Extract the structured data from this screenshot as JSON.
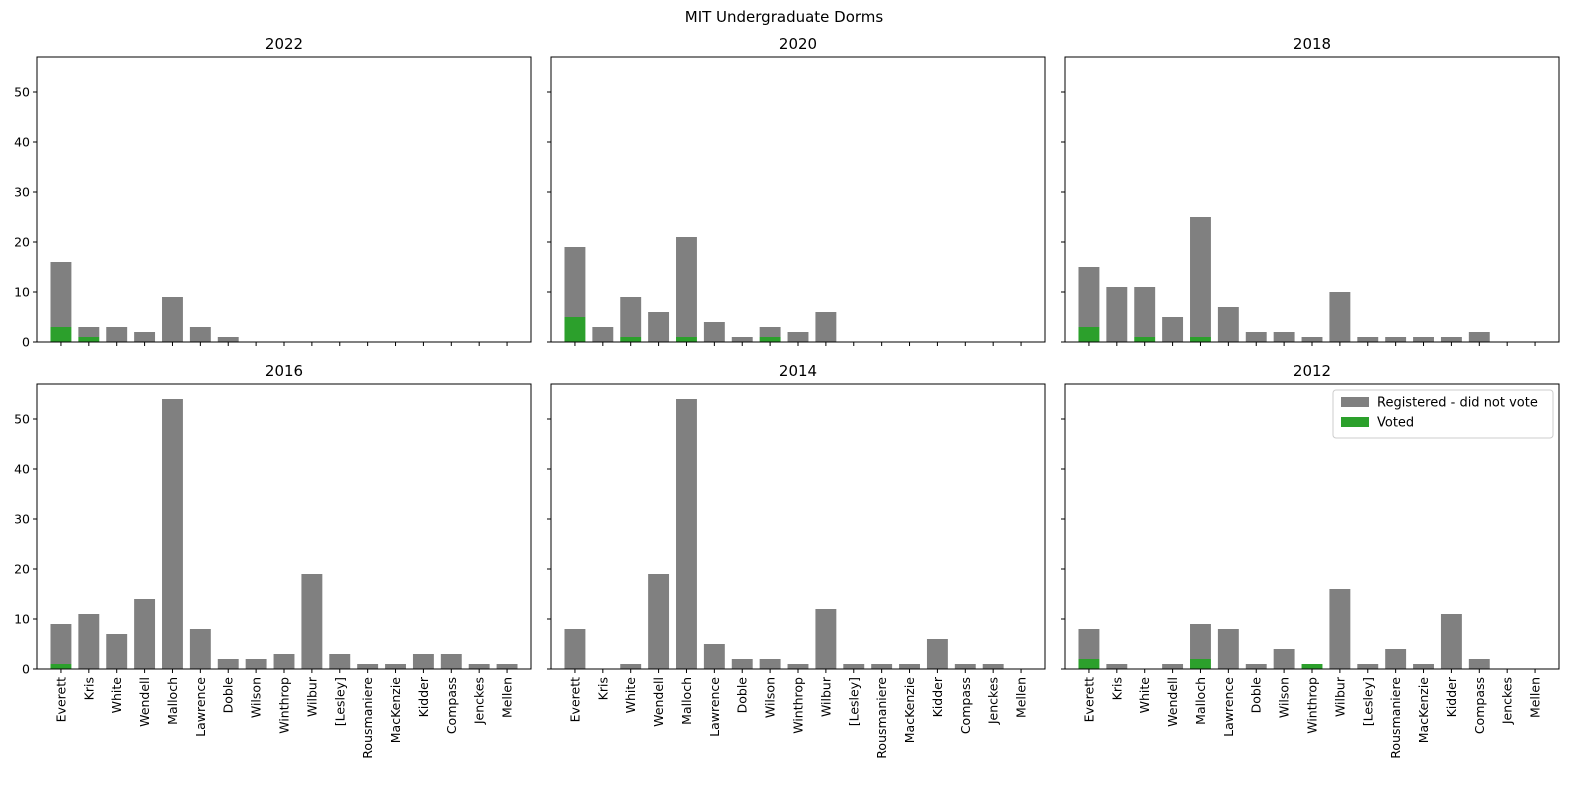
{
  "chart_data": {
    "type": "bar",
    "title": "MIT Undergraduate Dorms",
    "categories": [
      "Everett",
      "Kris",
      "White",
      "Wendell",
      "Malloch",
      "Lawrence",
      "Doble",
      "Wilson",
      "Winthrop",
      "Wilbur",
      "[Lesley]",
      "Rousmaniere",
      "MacKenzie",
      "Kidder",
      "Compass",
      "Jenckes",
      "Mellen"
    ],
    "ylim": [
      0,
      57
    ],
    "yticks": [
      0,
      10,
      20,
      30,
      40,
      50
    ],
    "legend": {
      "placement": "upper-right",
      "entries": [
        "Registered - did not vote",
        "Voted"
      ]
    },
    "colors": {
      "registered": "#808080",
      "voted": "#2ca02c"
    },
    "panels": [
      {
        "title": "2022",
        "series": [
          {
            "name": "Registered - did not vote",
            "values": [
              13,
              2,
              3,
              2,
              9,
              3,
              1,
              0,
              0,
              0,
              0,
              0,
              0,
              0,
              0,
              0,
              0
            ]
          },
          {
            "name": "Voted",
            "values": [
              3,
              1,
              0,
              0,
              0,
              0,
              0,
              0,
              0,
              0,
              0,
              0,
              0,
              0,
              0,
              0,
              0
            ]
          }
        ]
      },
      {
        "title": "2020",
        "series": [
          {
            "name": "Registered - did not vote",
            "values": [
              14,
              3,
              8,
              6,
              20,
              4,
              1,
              2,
              2,
              6,
              0,
              0,
              0,
              0,
              0,
              0,
              0
            ]
          },
          {
            "name": "Voted",
            "values": [
              5,
              0,
              1,
              0,
              1,
              0,
              0,
              1,
              0,
              0,
              0,
              0,
              0,
              0,
              0,
              0,
              0
            ]
          }
        ]
      },
      {
        "title": "2018",
        "series": [
          {
            "name": "Registered - did not vote",
            "values": [
              12,
              11,
              10,
              5,
              24,
              7,
              2,
              2,
              1,
              10,
              1,
              1,
              1,
              1,
              2,
              0,
              0
            ]
          },
          {
            "name": "Voted",
            "values": [
              3,
              0,
              1,
              0,
              1,
              0,
              0,
              0,
              0,
              0,
              0,
              0,
              0,
              0,
              0,
              0,
              0
            ]
          }
        ]
      },
      {
        "title": "2016",
        "series": [
          {
            "name": "Registered - did not vote",
            "values": [
              8,
              11,
              7,
              14,
              54,
              8,
              2,
              2,
              3,
              19,
              3,
              1,
              1,
              3,
              3,
              1,
              1
            ]
          },
          {
            "name": "Voted",
            "values": [
              1,
              0,
              0,
              0,
              0,
              0,
              0,
              0,
              0,
              0,
              0,
              0,
              0,
              0,
              0,
              0,
              0
            ]
          }
        ]
      },
      {
        "title": "2014",
        "series": [
          {
            "name": "Registered - did not vote",
            "values": [
              8,
              0,
              1,
              19,
              54,
              5,
              2,
              2,
              1,
              12,
              1,
              1,
              1,
              6,
              1,
              1,
              0
            ]
          },
          {
            "name": "Voted",
            "values": [
              0,
              0,
              0,
              0,
              0,
              0,
              0,
              0,
              0,
              0,
              0,
              0,
              0,
              0,
              0,
              0,
              0
            ]
          }
        ]
      },
      {
        "title": "2012",
        "series": [
          {
            "name": "Registered - did not vote",
            "values": [
              6,
              1,
              0,
              1,
              7,
              8,
              1,
              4,
              0,
              16,
              1,
              4,
              1,
              11,
              2,
              0,
              0
            ]
          },
          {
            "name": "Voted",
            "values": [
              2,
              0,
              0,
              0,
              2,
              0,
              0,
              0,
              1,
              0,
              0,
              0,
              0,
              0,
              0,
              0,
              0
            ]
          }
        ]
      }
    ]
  }
}
